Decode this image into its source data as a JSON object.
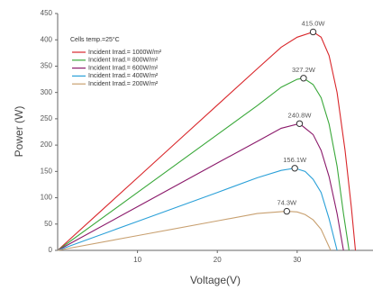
{
  "chart_data": {
    "type": "line",
    "annotation": "Cells temp.=25°C",
    "x_label": "Voltage(V)",
    "y_label": "Power (W)",
    "xlim": [
      0,
      39.5
    ],
    "xticks": [
      10,
      20,
      30
    ],
    "ylim": [
      0,
      450
    ],
    "yticks": [
      0,
      50,
      100,
      150,
      200,
      250,
      300,
      350,
      400,
      450
    ],
    "legend": "top-left",
    "series": [
      {
        "name": "Incident Irrad.= 1000W/m²",
        "color": "#d9262a",
        "x": [
          0,
          5,
          10,
          15,
          20,
          25,
          28,
          30,
          32,
          33,
          34,
          35,
          36,
          36.8,
          37.3
        ],
        "values": [
          0,
          69,
          138,
          207,
          276,
          345,
          386,
          405,
          415,
          405,
          370,
          300,
          190,
          80,
          0
        ],
        "mpp_x": 32,
        "mpp_value": 415,
        "mpp_label": "415.0W"
      },
      {
        "name": "Incident Irrad.= 800W/m²",
        "color": "#3aa83a",
        "x": [
          0,
          10,
          20,
          25,
          28,
          30,
          30.8,
          32,
          33,
          34,
          35,
          35.8,
          36.5
        ],
        "values": [
          0,
          110,
          220,
          275,
          310,
          325,
          327.2,
          315,
          290,
          240,
          160,
          70,
          0
        ],
        "mpp_x": 30.8,
        "mpp_value": 327.2,
        "mpp_label": "327.2W"
      },
      {
        "name": "Incident Irrad.= 600W/m²",
        "color": "#8b1a6b",
        "x": [
          0,
          10,
          20,
          25,
          28,
          30.3,
          32,
          33,
          34,
          35,
          35.8
        ],
        "values": [
          0,
          83,
          166,
          207,
          232,
          240.8,
          220,
          190,
          140,
          70,
          0
        ],
        "mpp_x": 30.3,
        "mpp_value": 240.8,
        "mpp_label": "240.8W"
      },
      {
        "name": "Incident Irrad.= 400W/m²",
        "color": "#2aa0d8",
        "x": [
          0,
          10,
          20,
          25,
          28,
          29.7,
          31,
          32,
          33,
          34,
          35
        ],
        "values": [
          0,
          55,
          110,
          138,
          152,
          156.1,
          150,
          135,
          110,
          60,
          0
        ],
        "mpp_x": 29.7,
        "mpp_value": 156.1,
        "mpp_label": "156.1W"
      },
      {
        "name": "Incident Irrad.= 200W/m²",
        "color": "#c8a070",
        "x": [
          0,
          10,
          20,
          25,
          28.7,
          30,
          31,
          32,
          33,
          34.2
        ],
        "values": [
          0,
          28,
          56,
          70,
          74.3,
          73,
          68,
          58,
          40,
          0
        ],
        "mpp_x": 28.7,
        "mpp_value": 74.3,
        "mpp_label": "74.3W"
      }
    ]
  }
}
